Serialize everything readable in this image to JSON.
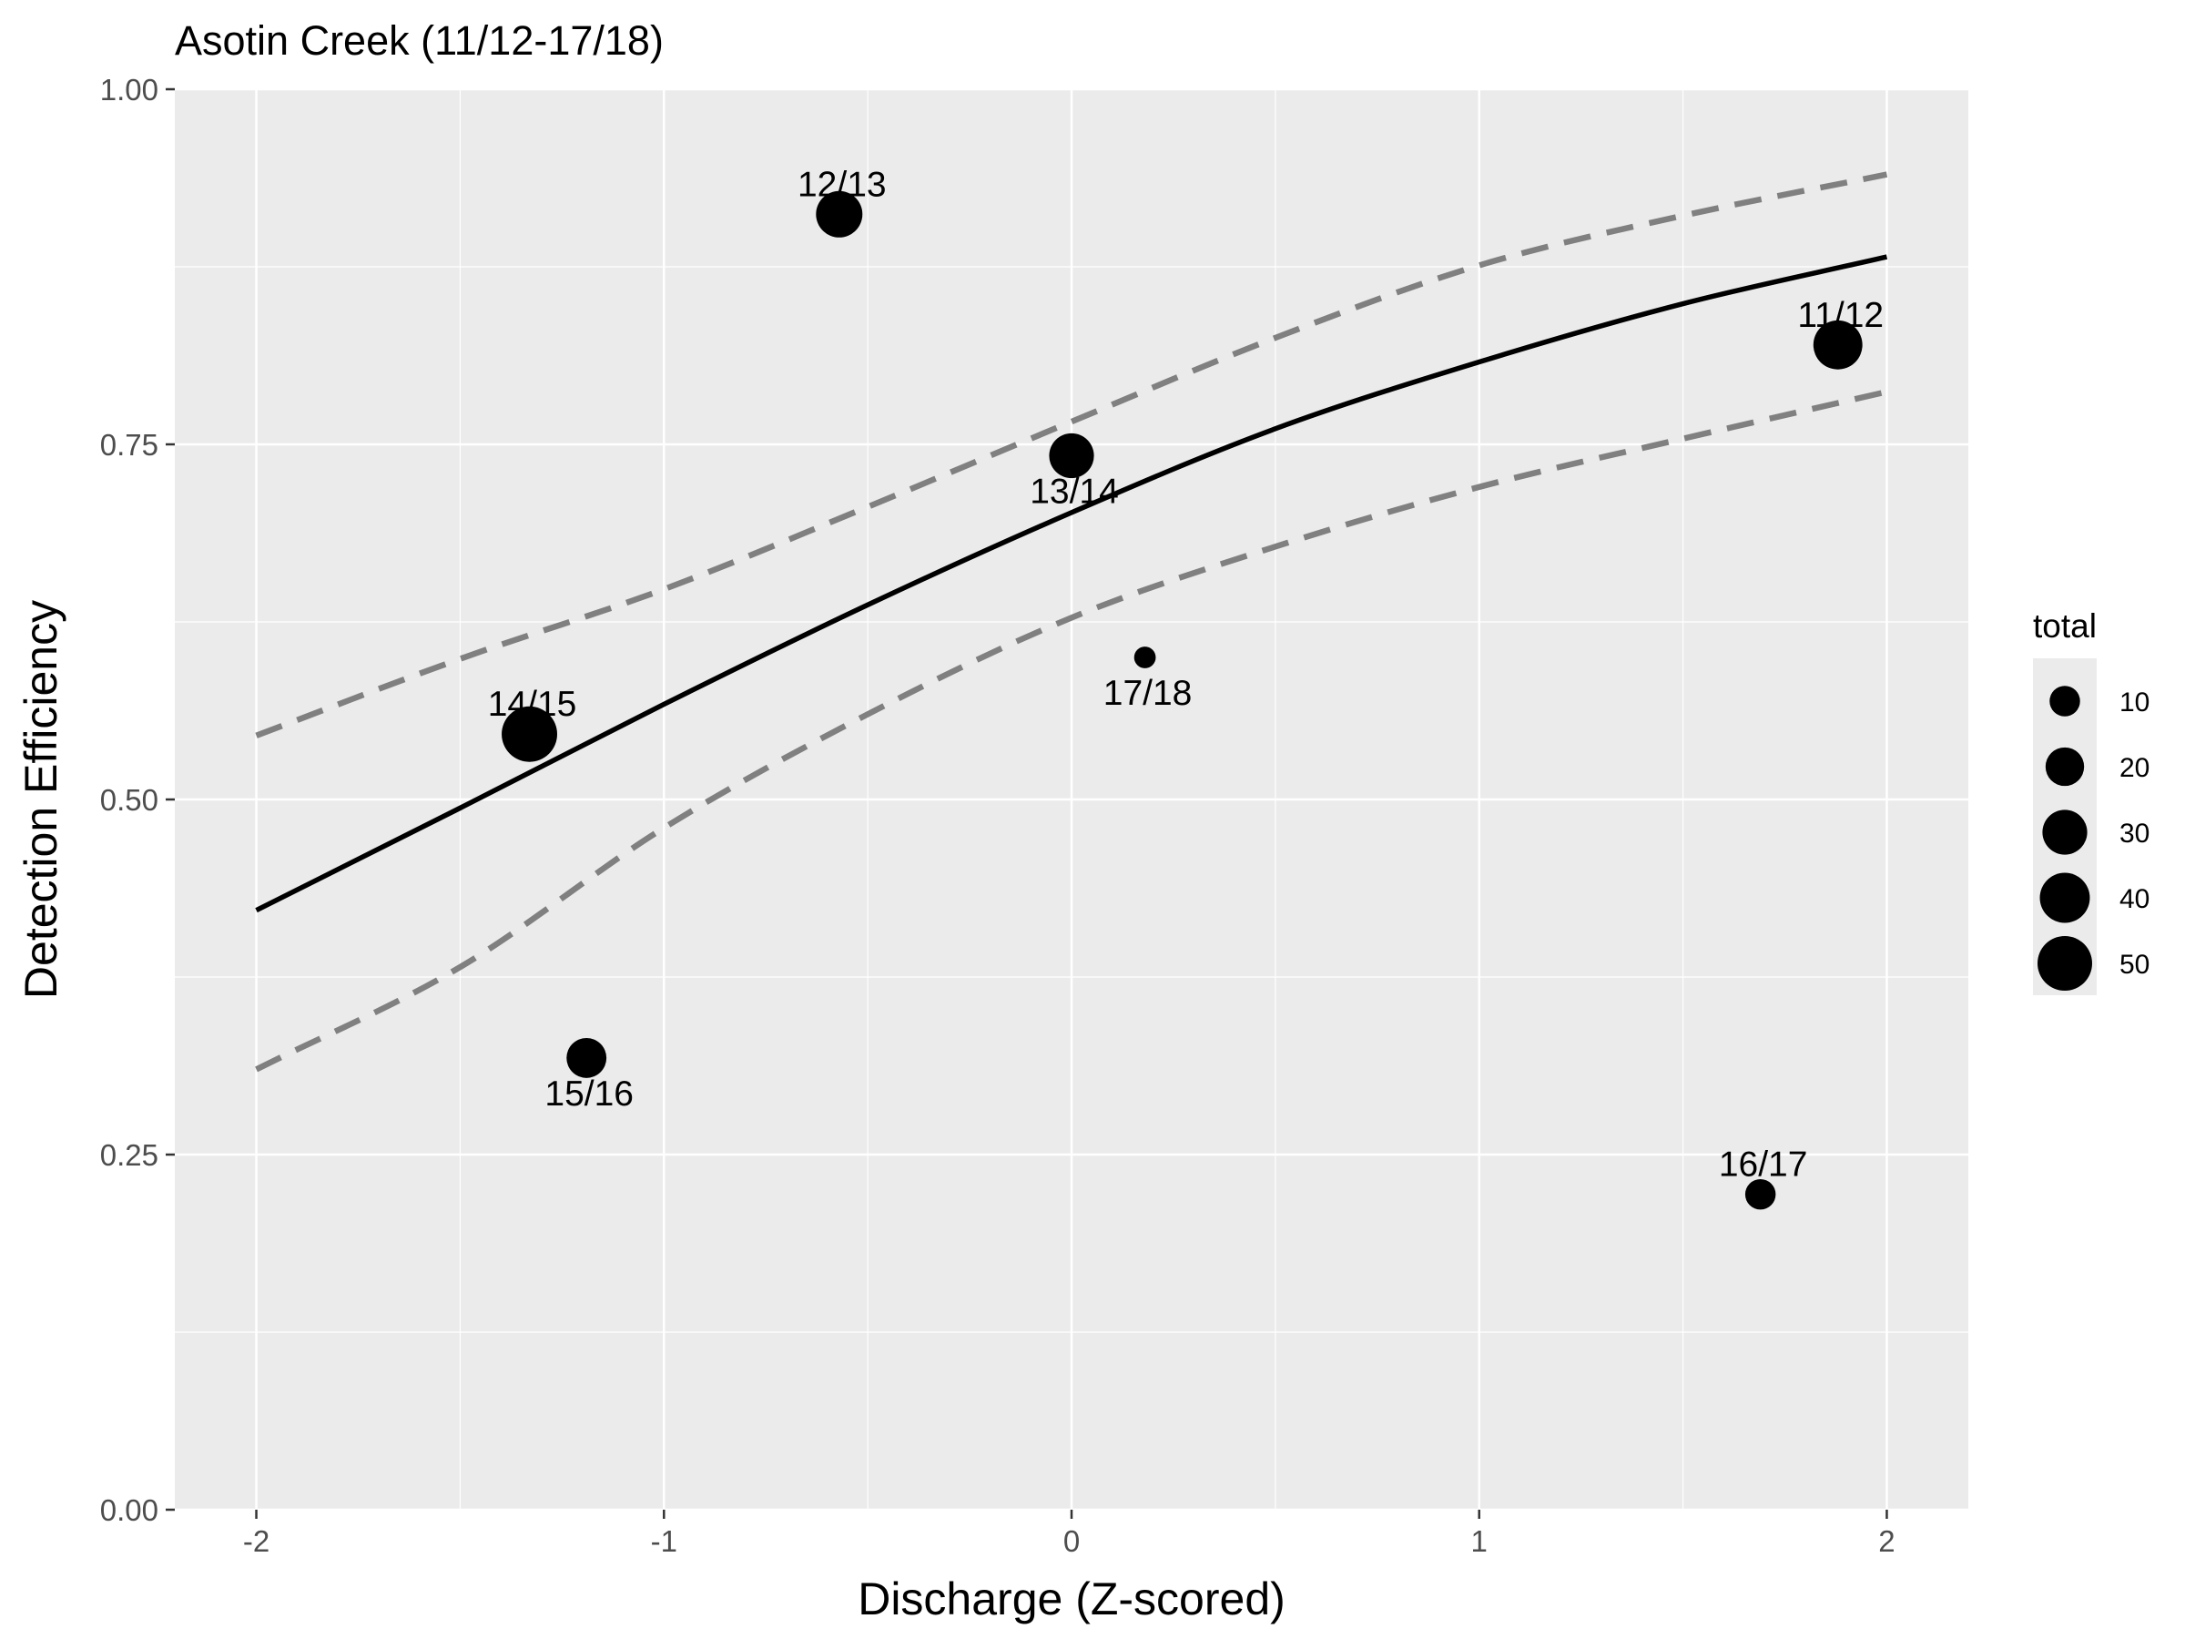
{
  "chart_data": {
    "type": "scatter",
    "title": "Asotin Creek (11/12-17/18)",
    "xlabel": "Discharge (Z-scored)",
    "ylabel": "Detection Efficiency",
    "xlim": [
      -2.2,
      2.2
    ],
    "ylim": [
      0,
      1
    ],
    "x_ticks": [
      -2,
      -1,
      0,
      1,
      2
    ],
    "x_tick_labels": [
      "-2",
      "-1",
      "0",
      "1",
      "2"
    ],
    "y_ticks": [
      0,
      0.25,
      0.5,
      0.75,
      1
    ],
    "y_tick_labels": [
      "0.00",
      "0.25",
      "0.50",
      "0.75",
      "1.00"
    ],
    "grid": true,
    "points": [
      {
        "label": "11/12",
        "x": 1.88,
        "y": 0.82,
        "total": 38,
        "label_position": "above"
      },
      {
        "label": "12/13",
        "x": -0.57,
        "y": 0.912,
        "total": 33,
        "label_position": "above"
      },
      {
        "label": "13/14",
        "x": 0.0,
        "y": 0.742,
        "total": 30,
        "label_position": "below"
      },
      {
        "label": "14/15",
        "x": -1.33,
        "y": 0.546,
        "total": 52,
        "label_position": "above"
      },
      {
        "label": "15/16",
        "x": -1.19,
        "y": 0.318,
        "total": 22,
        "label_position": "below"
      },
      {
        "label": "16/17",
        "x": 1.69,
        "y": 0.222,
        "total": 10,
        "label_position": "above"
      },
      {
        "label": "17/18",
        "x": 0.18,
        "y": 0.6,
        "total": 3,
        "label_position": "below"
      }
    ],
    "fit_line": {
      "x": [
        -2,
        -1.5,
        -1,
        -0.5,
        0,
        0.5,
        1,
        1.5,
        2
      ],
      "y": [
        0.422,
        0.494,
        0.567,
        0.637,
        0.702,
        0.761,
        0.808,
        0.849,
        0.882
      ],
      "color": "#000000",
      "style": "solid"
    },
    "ci_upper": {
      "x": [
        -2,
        -1.5,
        -1,
        -0.5,
        0,
        0.5,
        1,
        1.5,
        2
      ],
      "y": [
        0.545,
        0.599,
        0.648,
        0.706,
        0.766,
        0.825,
        0.876,
        0.911,
        0.94
      ],
      "color": "#808080",
      "style": "dashed"
    },
    "ci_lower": {
      "x": [
        -2,
        -1.5,
        -1,
        -0.5,
        0,
        0.5,
        1,
        1.5,
        2
      ],
      "y": [
        0.31,
        0.382,
        0.48,
        0.56,
        0.628,
        0.678,
        0.72,
        0.754,
        0.787
      ],
      "color": "#808080",
      "style": "dashed"
    },
    "legend": {
      "title": "total",
      "placement": "right",
      "entries": [
        {
          "label": "10",
          "value": 10
        },
        {
          "label": "20",
          "value": 20
        },
        {
          "label": "30",
          "value": 30
        },
        {
          "label": "40",
          "value": 40
        },
        {
          "label": "50",
          "value": 50
        }
      ]
    },
    "colors": {
      "panel_background": "#ebebeb",
      "grid": "#ffffff",
      "points": "#000000"
    }
  }
}
